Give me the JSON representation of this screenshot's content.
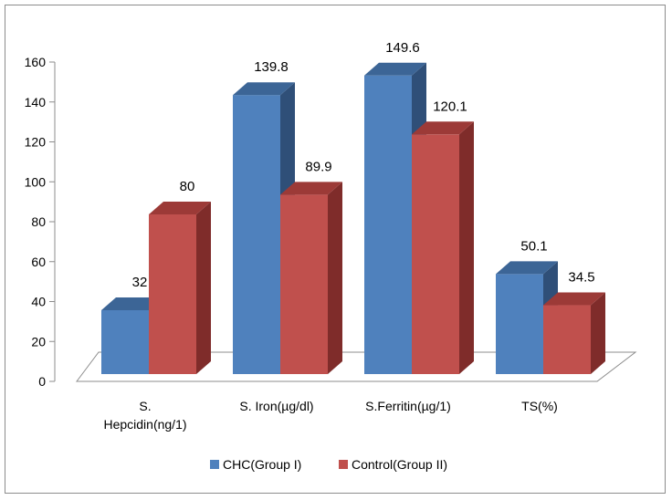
{
  "chart_data": {
    "type": "bar",
    "style": "3d-clustered-column",
    "categories": [
      [
        "S.",
        "Hepcidin(ng/1)"
      ],
      [
        "S. Iron(µg/dl)"
      ],
      [
        "S.Ferritin(µg/1)"
      ],
      [
        "TS(%)"
      ]
    ],
    "series": [
      {
        "name": "CHC(Group I)",
        "values": [
          32,
          139.8,
          149.6,
          50.1
        ],
        "labels": [
          "32",
          "139.8",
          "149.6",
          "50.1"
        ]
      },
      {
        "name": "Control(Group II)",
        "values": [
          80,
          89.9,
          120.1,
          34.5
        ],
        "labels": [
          "80",
          "89.9",
          "120.1",
          "34.5"
        ]
      }
    ],
    "yticks": [
      "0",
      "20",
      "40",
      "60",
      "80",
      "100",
      "120",
      "140",
      "160"
    ],
    "ylim": [
      0,
      160
    ],
    "legend_position": "bottom",
    "grid": false,
    "colors": {
      "s0_front": "#4f81bd",
      "s0_side": "#2f4f78",
      "s0_top": "#3c6596",
      "s1_front": "#c0504d",
      "s1_side": "#7f2c2a",
      "s1_top": "#9c3a37",
      "axis": "#8c8c8c"
    }
  }
}
